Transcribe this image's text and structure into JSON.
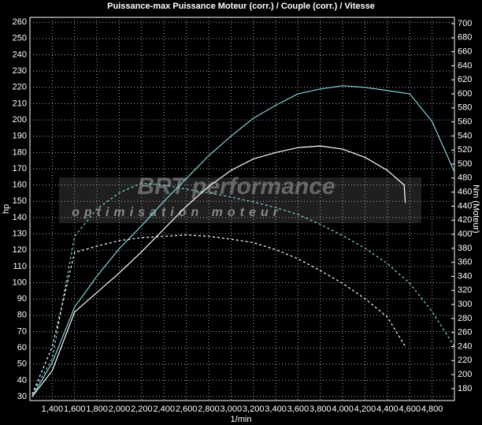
{
  "chart_data": {
    "type": "line",
    "title": "Puissance-max Puissance Moteur (corr.) / Couple (corr.) / Vitesse",
    "x_label": "1/min",
    "y_label": "hp",
    "y2_label": "Nm (Moteur)",
    "watermark": [
      "BRT performance",
      "optimisation moteur"
    ],
    "xlim": [
      1200,
      5000
    ],
    "ylim": [
      27.6,
      263
    ],
    "y2lim": [
      163,
      709
    ],
    "grid": true,
    "xticks": [
      {
        "value": 1400,
        "label": "1,400"
      },
      {
        "value": 1600,
        "label": "1,600"
      },
      {
        "value": 1800,
        "label": "1,800"
      },
      {
        "value": 2000,
        "label": "2,000"
      },
      {
        "value": 2200,
        "label": "2,200"
      },
      {
        "value": 2400,
        "label": "2,400"
      },
      {
        "value": 2600,
        "label": "2,600"
      },
      {
        "value": 2800,
        "label": "2,800"
      },
      {
        "value": 3000,
        "label": "3,000"
      },
      {
        "value": 3200,
        "label": "3,200"
      },
      {
        "value": 3400,
        "label": "3,400"
      },
      {
        "value": 3600,
        "label": "3,600"
      },
      {
        "value": 3800,
        "label": "3,800"
      },
      {
        "value": 4000,
        "label": "4,000"
      },
      {
        "value": 4200,
        "label": "4,200"
      },
      {
        "value": 4400,
        "label": "4,400"
      },
      {
        "value": 4600,
        "label": "4,600"
      },
      {
        "value": 4800,
        "label": "4,800"
      }
    ],
    "yticks": [
      30,
      40,
      50,
      60,
      70,
      80,
      90,
      100,
      110,
      120,
      130,
      140,
      150,
      160,
      170,
      180,
      190,
      200,
      210,
      220,
      230,
      240,
      250,
      260
    ],
    "y2ticks": [
      180,
      200,
      220,
      240,
      260,
      280,
      300,
      320,
      340,
      360,
      380,
      400,
      420,
      440,
      460,
      480,
      500,
      520,
      540,
      560,
      580,
      600,
      620,
      640,
      660,
      680,
      700
    ],
    "series": [
      {
        "color": "#7fd3d8",
        "axis": "y",
        "dashed": false,
        "x": [
          1220,
          1400,
          1600,
          1800,
          2000,
          2200,
          2400,
          2600,
          2800,
          3000,
          3200,
          3400,
          3600,
          3800,
          4000,
          4200,
          4400,
          4600,
          4800,
          5000
        ],
        "values": [
          30,
          51,
          85,
          104,
          121,
          135,
          150,
          164,
          178,
          190,
          201,
          209,
          216,
          219,
          221,
          220,
          218,
          216,
          199,
          168
        ]
      },
      {
        "color": "#ffffff",
        "axis": "y",
        "dashed": false,
        "x": [
          1220,
          1400,
          1600,
          1800,
          2000,
          2200,
          2400,
          2600,
          2800,
          3000,
          3200,
          3400,
          3600,
          3800,
          4000,
          4200,
          4400,
          4550,
          4560
        ],
        "values": [
          30,
          46,
          82,
          94,
          106,
          119,
          133,
          147,
          159,
          169,
          176,
          180,
          183,
          184,
          182,
          177,
          169,
          160,
          149
        ]
      },
      {
        "color": "#7fd3d8",
        "axis": "y2",
        "dashed": true,
        "x": [
          1220,
          1400,
          1600,
          1800,
          2000,
          2200,
          2400,
          2600,
          2800,
          3000,
          3200,
          3400,
          3600,
          3800,
          4000,
          4200,
          4400,
          4600,
          4800,
          5000
        ],
        "values": [
          172,
          223,
          397,
          436,
          459,
          473,
          470,
          464,
          459,
          453,
          446,
          438,
          428,
          414,
          398,
          380,
          358,
          330,
          290,
          240
        ]
      },
      {
        "color": "#ffffff",
        "axis": "y2",
        "dashed": true,
        "x": [
          1220,
          1400,
          1600,
          1800,
          2000,
          2200,
          2400,
          2600,
          2800,
          3000,
          3200,
          3400,
          3600,
          3800,
          4000,
          4200,
          4400,
          4560
        ],
        "values": [
          172,
          240,
          374,
          383,
          391,
          395,
          397,
          399,
          397,
          393,
          388,
          378,
          365,
          348,
          330,
          308,
          282,
          240
        ]
      }
    ]
  }
}
